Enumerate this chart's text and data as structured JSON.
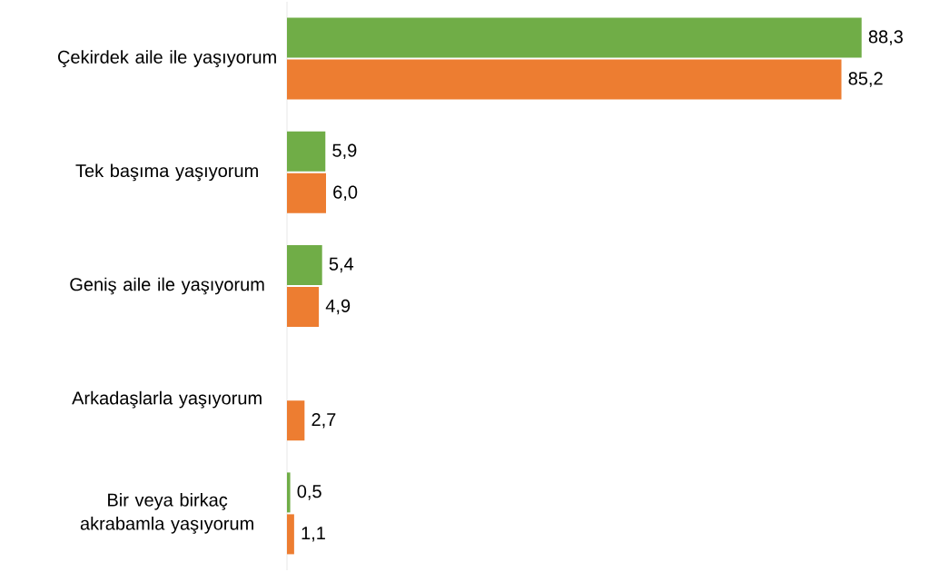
{
  "chart_data": {
    "type": "bar",
    "orientation": "horizontal",
    "categories": [
      "Çekirdek aile ile yaşıyorum",
      "Tek başıma yaşıyorum",
      "Geniş aile ile yaşıyorum",
      "Arkadaşlarla yaşıyorum",
      "Bir veya birkaç akrabamla yaşıyorum"
    ],
    "series": [
      {
        "color": "#70ad47",
        "values": [
          88.3,
          5.9,
          5.4,
          null,
          0.5
        ],
        "value_labels": [
          "88,3",
          "5,9",
          "5,4",
          null,
          "0,5"
        ]
      },
      {
        "color": "#ed7d31",
        "values": [
          85.2,
          6.0,
          4.9,
          2.7,
          1.1
        ],
        "value_labels": [
          "85,2",
          "6,0",
          "4,9",
          "2,7",
          "1,1"
        ]
      }
    ]
  }
}
